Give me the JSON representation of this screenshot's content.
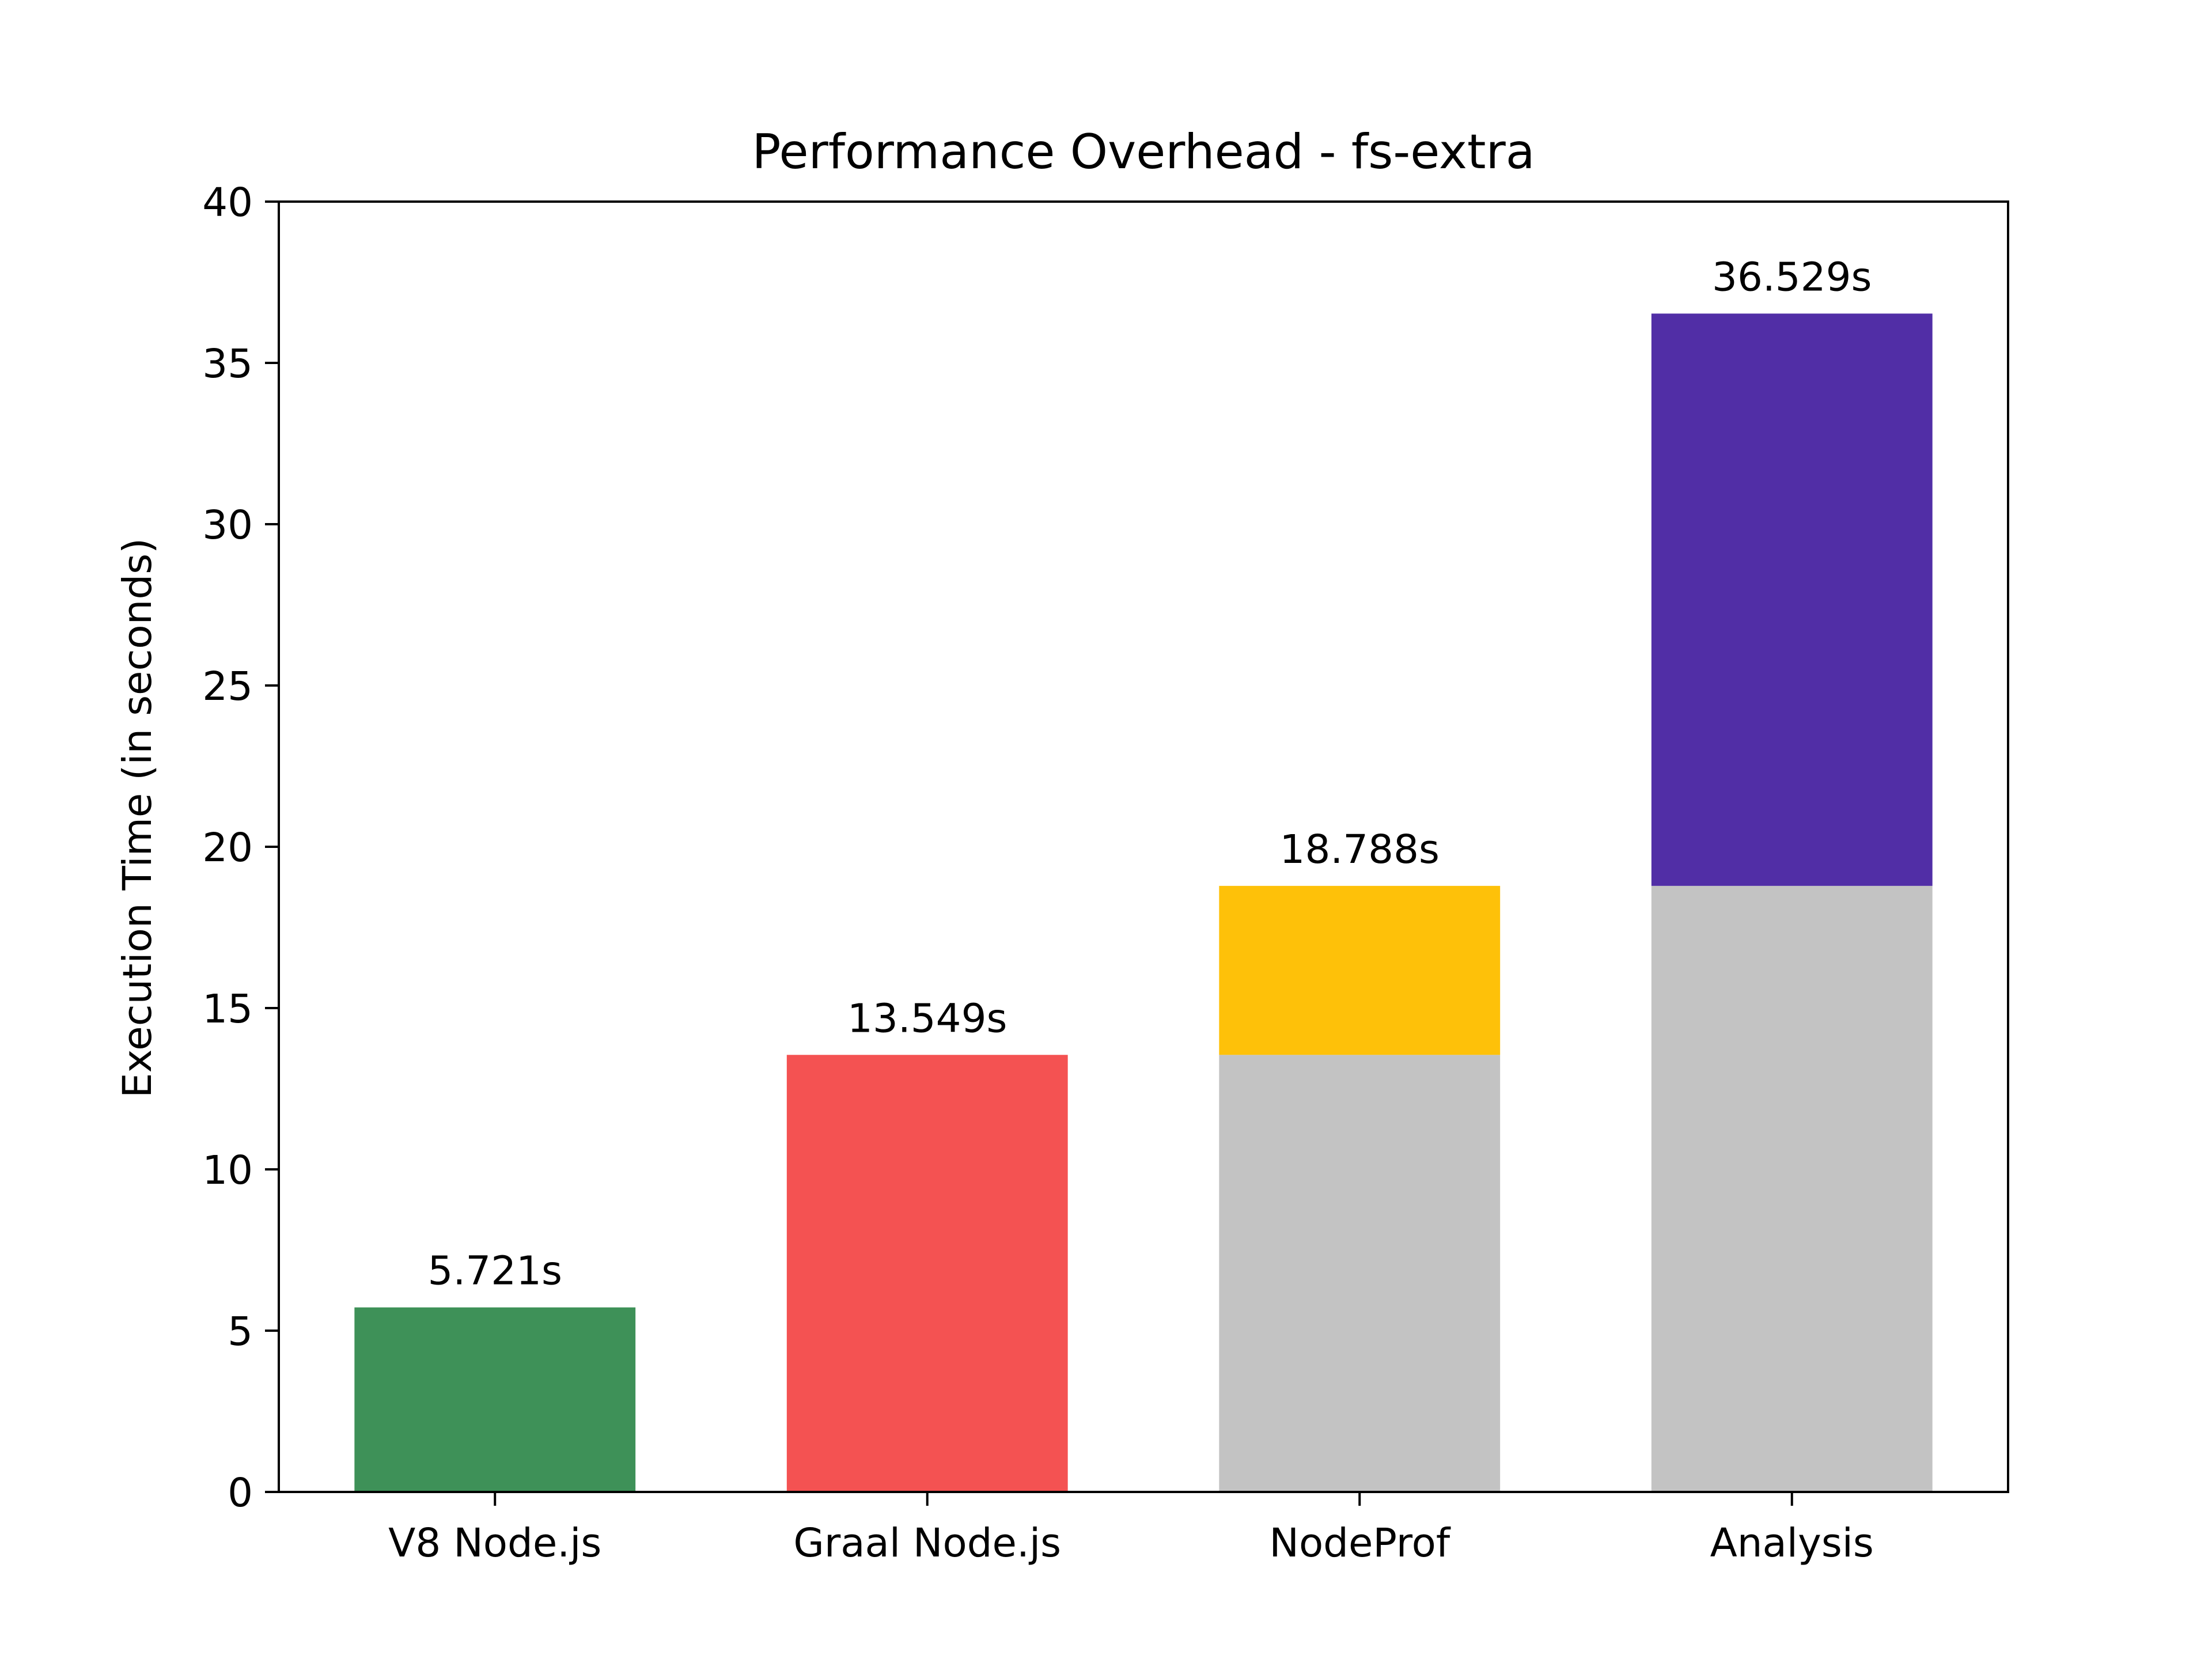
{
  "chart_data": {
    "type": "bar",
    "stacked": true,
    "title": "Performance Overhead - fs-extra",
    "xlabel": "",
    "ylabel": "Execution Time (in seconds)",
    "ylim": [
      0,
      40
    ],
    "yticks": [
      0,
      5,
      10,
      15,
      20,
      25,
      30,
      35,
      40
    ],
    "grid": false,
    "categories": [
      "V8 Node.js",
      "Graal Node.js",
      "NodeProf",
      "Analysis"
    ],
    "bars": [
      {
        "category": "V8 Node.js",
        "total_label": "5.721s",
        "segments": [
          {
            "from": 0,
            "to": 5.721,
            "color": "#3e9158"
          }
        ]
      },
      {
        "category": "Graal Node.js",
        "total_label": "13.549s",
        "segments": [
          {
            "from": 0,
            "to": 13.549,
            "color": "#f45252"
          }
        ]
      },
      {
        "category": "NodeProf",
        "total_label": "18.788s",
        "segments": [
          {
            "from": 0,
            "to": 13.549,
            "color": "#c3c3c3"
          },
          {
            "from": 13.549,
            "to": 18.788,
            "color": "#fec109"
          }
        ]
      },
      {
        "category": "Analysis",
        "total_label": "36.529s",
        "segments": [
          {
            "from": 0,
            "to": 18.788,
            "color": "#c3c3c3"
          },
          {
            "from": 18.788,
            "to": 36.529,
            "color": "#512ea6"
          }
        ]
      }
    ]
  }
}
